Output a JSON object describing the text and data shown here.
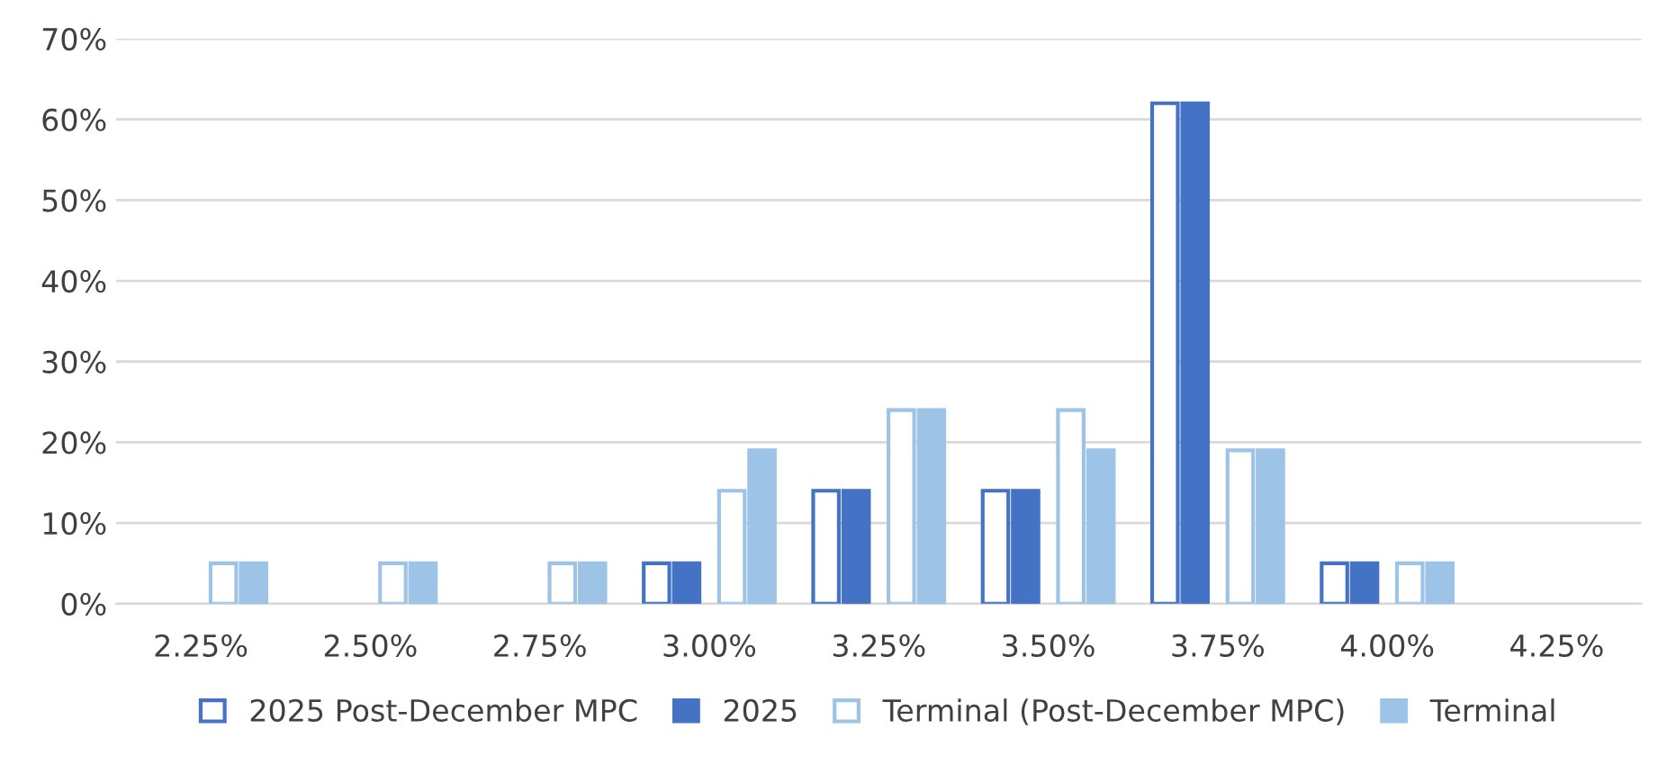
{
  "chart_data": {
    "type": "bar",
    "categories": [
      "2.25%",
      "2.50%",
      "2.75%",
      "3.00%",
      "3.25%",
      "3.50%",
      "3.75%",
      "4.00%",
      "4.25%"
    ],
    "series": [
      {
        "name": "2025 Post-December MPC",
        "color": "#4472c4",
        "line_style": "solid",
        "values": [
          null,
          null,
          null,
          5,
          14,
          14,
          62,
          5,
          null
        ]
      },
      {
        "name": "2025",
        "color": "#4472c4",
        "values": [
          null,
          null,
          null,
          5,
          14,
          14,
          62,
          5,
          null
        ]
      },
      {
        "name": "Terminal (Post-December MPC)",
        "color": "#9dc3e6",
        "line_style": "solid",
        "values": [
          5,
          5,
          5,
          14,
          24,
          24,
          19,
          5,
          null
        ]
      },
      {
        "name": "Terminal",
        "color": "#9dc3e6",
        "values": [
          5,
          5,
          5,
          19,
          24,
          19,
          19,
          5,
          null
        ]
      }
    ],
    "ylim": [
      0,
      70
    ],
    "yticks": [
      {
        "value": 0,
        "label": "0%"
      },
      {
        "value": 10,
        "label": "10%"
      },
      {
        "value": 20,
        "label": "20%"
      },
      {
        "value": 30,
        "label": "30%"
      },
      {
        "value": 40,
        "label": "40%"
      },
      {
        "value": 50,
        "label": "50%"
      },
      {
        "value": 60,
        "label": "60%"
      },
      {
        "value": 70,
        "label": "70%"
      }
    ],
    "grid": "y",
    "legend": "bottom"
  }
}
